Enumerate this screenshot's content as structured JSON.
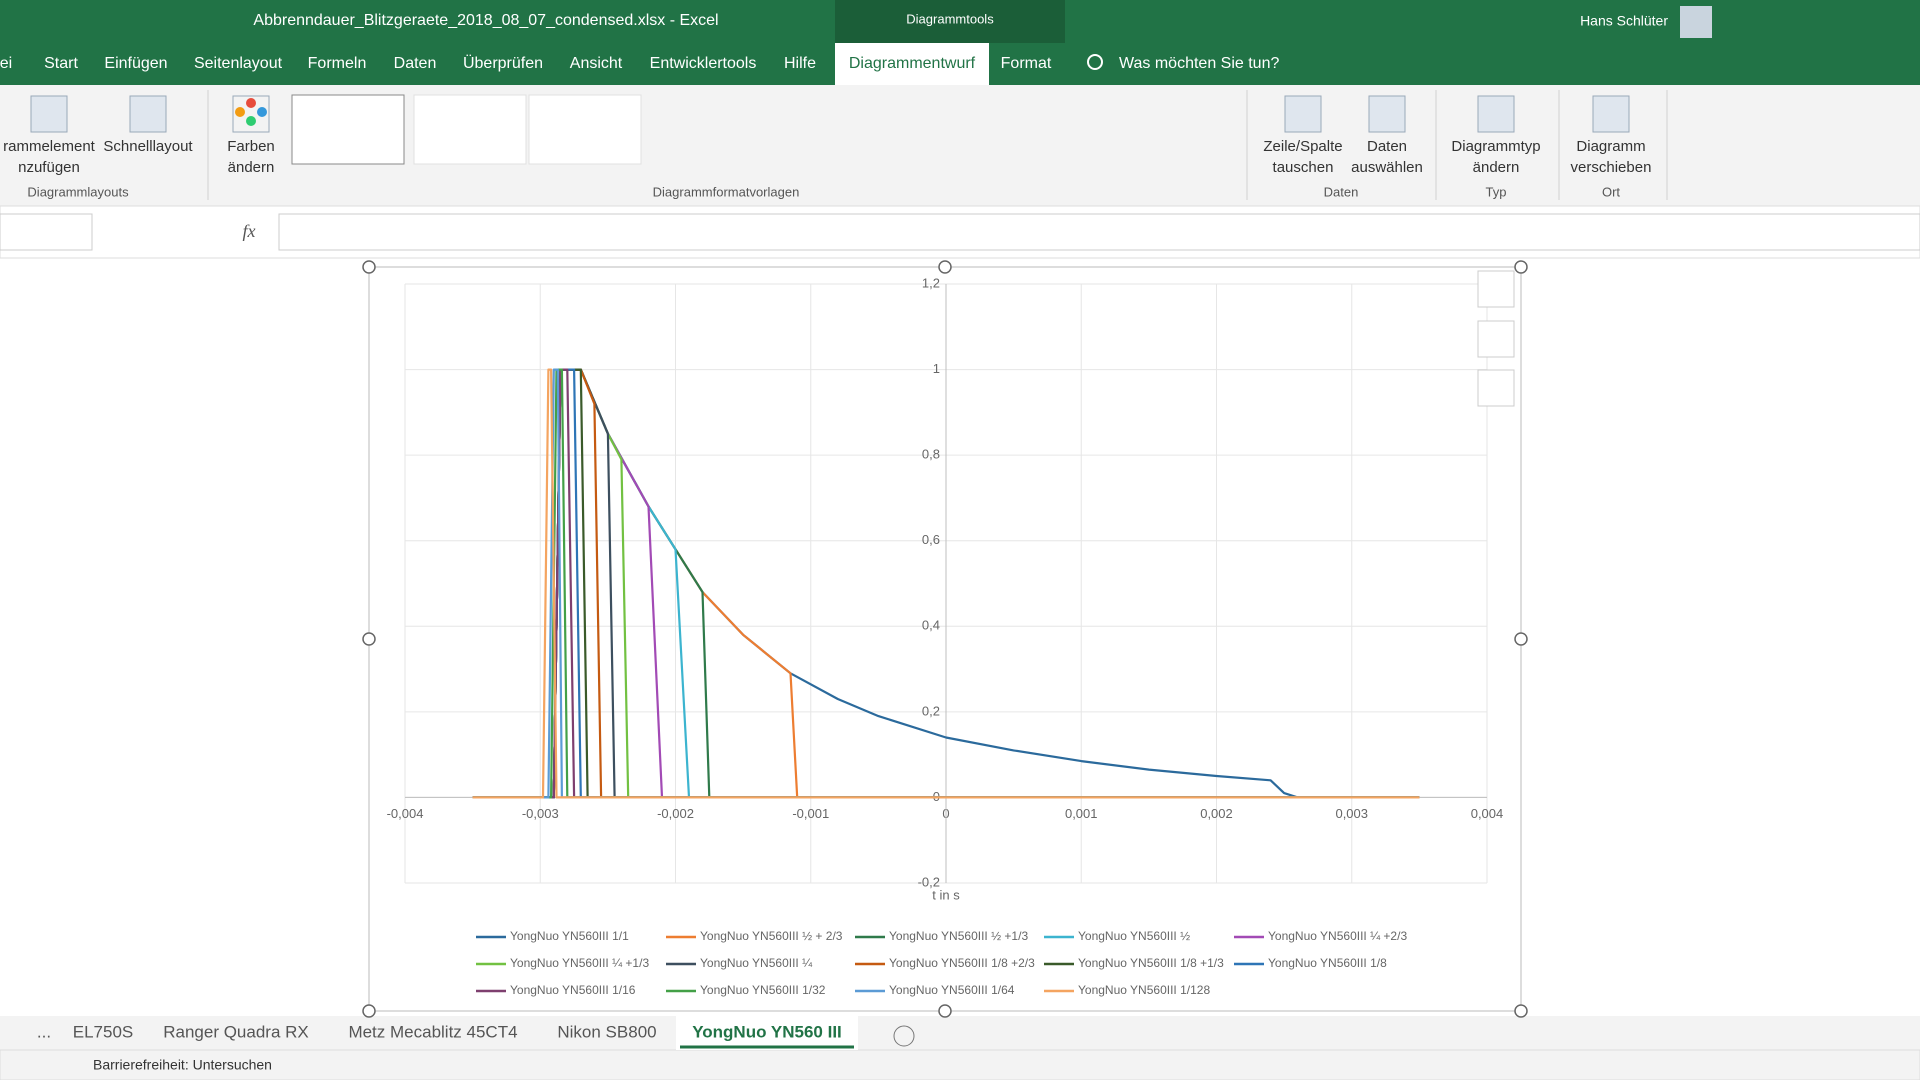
{
  "window": {
    "title": "Abbrenndauer_Blitzgeraete_2018_08_07_condensed.xlsx  -  Excel",
    "context_tab": "Diagrammtools",
    "user": "Hans Schlüter"
  },
  "ribbon_tabs": [
    "ei",
    "Start",
    "Einfügen",
    "Seitenlayout",
    "Formeln",
    "Daten",
    "Überprüfen",
    "Ansicht",
    "Entwicklertools",
    "Hilfe",
    "Diagrammentwurf",
    "Format"
  ],
  "tell_me": "Was möchten Sie tun?",
  "ribbon_buttons": [
    {
      "lines": [
        "rammelement",
        "nzufügen"
      ]
    },
    {
      "lines": [
        "Schnelllayout"
      ]
    },
    {
      "lines": [
        "Farben",
        "ändern"
      ]
    },
    {
      "lines": [
        "Zeile/Spalte",
        "tauschen"
      ]
    },
    {
      "lines": [
        "Daten",
        "auswählen"
      ]
    },
    {
      "lines": [
        "Diagrammtyp",
        "ändern"
      ]
    },
    {
      "lines": [
        "Diagramm",
        "verschieben"
      ]
    }
  ],
  "ribbon_groups": [
    "Diagrammlayouts",
    "Diagrammformatvorlagen",
    "Daten",
    "Typ",
    "Ort"
  ],
  "formula_bar": {
    "fx": "fx"
  },
  "sheet_tabs": [
    "...",
    "EL750S",
    "Ranger Quadra RX",
    "Metz Mecablitz 45CT4",
    "Nikon SB800",
    "YongNuo YN560 III"
  ],
  "status": "Barrierefreiheit: Untersuchen",
  "chart_data": {
    "type": "line",
    "x_label": "t in s",
    "grid": true,
    "legend": "bottom",
    "xlim": [
      -0.004,
      0.004
    ],
    "xticks": [
      {
        "value": -0.004,
        "label": "-0,004"
      },
      {
        "value": -0.003,
        "label": "-0,003"
      },
      {
        "value": -0.002,
        "label": "-0,002"
      },
      {
        "value": -0.001,
        "label": "-0,001"
      },
      0,
      {
        "value": 0.001,
        "label": "0,001"
      },
      {
        "value": 0.002,
        "label": "0,002"
      },
      {
        "value": 0.003,
        "label": "0,003"
      },
      {
        "value": 0.004,
        "label": "0,004"
      }
    ],
    "ylim": [
      -0.2,
      1.2
    ],
    "yticks": [
      {
        "value": -0.2,
        "label": "-0,2"
      },
      0,
      {
        "value": 0.2,
        "label": "0,2"
      },
      {
        "value": 0.4,
        "label": "0,4"
      },
      {
        "value": 0.6,
        "label": "0,6"
      },
      {
        "value": 0.8,
        "label": "0,8"
      },
      1,
      {
        "value": 1.2,
        "label": "1,2"
      }
    ],
    "series": [
      {
        "name": "YongNuo YN560III 1/1",
        "color": "#2b6a9c",
        "x": [
          -0.0035,
          -0.0029,
          -0.00285,
          -0.0027,
          -0.0025,
          -0.0022,
          -0.002,
          -0.0018,
          -0.0015,
          -0.00115,
          -0.0008,
          -0.0005,
          0,
          0.0005,
          0.001,
          0.0015,
          0.002,
          0.0024,
          0.0025,
          0.0026,
          0.0035
        ],
        "values": [
          0,
          0,
          1,
          1,
          0.85,
          0.68,
          0.58,
          0.48,
          0.38,
          0.29,
          0.23,
          0.19,
          0.14,
          0.11,
          0.085,
          0.065,
          0.05,
          0.04,
          0.01,
          0,
          0
        ]
      },
      {
        "name": "YongNuo YN560III ½ + 2/3",
        "color": "#ed7d31",
        "x": [
          -0.0035,
          -0.0029,
          -0.00285,
          -0.0027,
          -0.0025,
          -0.0022,
          -0.002,
          -0.0018,
          -0.0015,
          -0.00115,
          -0.0011,
          0.0035
        ],
        "values": [
          0,
          0,
          1,
          1,
          0.85,
          0.68,
          0.58,
          0.48,
          0.38,
          0.29,
          0,
          0
        ]
      },
      {
        "name": "YongNuo YN560III ½ +1/3",
        "color": "#2f7a4a",
        "x": [
          -0.0035,
          -0.0029,
          -0.00285,
          -0.0027,
          -0.0025,
          -0.0022,
          -0.002,
          -0.0018,
          -0.00175,
          0.0035
        ],
        "values": [
          0,
          0,
          1,
          1,
          0.85,
          0.68,
          0.58,
          0.48,
          0,
          0
        ]
      },
      {
        "name": "YongNuo YN560III ½",
        "color": "#3cb4cf",
        "x": [
          -0.0035,
          -0.0029,
          -0.00285,
          -0.0027,
          -0.0025,
          -0.0022,
          -0.002,
          -0.0019,
          0.0035
        ],
        "values": [
          0,
          0,
          1,
          1,
          0.85,
          0.68,
          0.58,
          0,
          0
        ]
      },
      {
        "name": "YongNuo YN560III ¼ +2/3",
        "color": "#a24ab5",
        "x": [
          -0.0035,
          -0.0029,
          -0.00285,
          -0.0027,
          -0.0025,
          -0.0022,
          -0.0021,
          0.0035
        ],
        "values": [
          0,
          0,
          1,
          1,
          0.85,
          0.68,
          0,
          0
        ]
      },
      {
        "name": "YongNuo YN560III ¼ +1/3",
        "color": "#72c142",
        "x": [
          -0.0035,
          -0.0029,
          -0.00285,
          -0.0027,
          -0.0025,
          -0.0024,
          -0.00235,
          0.0035
        ],
        "values": [
          0,
          0,
          1,
          1,
          0.85,
          0.79,
          0,
          0
        ]
      },
      {
        "name": "YongNuo YN560III ¼",
        "color": "#3d4f5f",
        "x": [
          -0.0035,
          -0.0029,
          -0.00285,
          -0.0027,
          -0.0025,
          -0.00245,
          0.0035
        ],
        "values": [
          0,
          0,
          1,
          1,
          0.85,
          0,
          0
        ]
      },
      {
        "name": "YongNuo YN560III 1/8 +2/3",
        "color": "#c55a11",
        "x": [
          -0.0035,
          -0.0029,
          -0.00285,
          -0.0027,
          -0.0026,
          -0.00255,
          0.0035
        ],
        "values": [
          0,
          0,
          1,
          1,
          0.92,
          0,
          0
        ]
      },
      {
        "name": "YongNuo YN560III 1/8 +1/3",
        "color": "#3a5a2a",
        "x": [
          -0.0035,
          -0.0029,
          -0.00285,
          -0.0027,
          -0.00265,
          0.0035
        ],
        "values": [
          0,
          0,
          1,
          1,
          0,
          0
        ]
      },
      {
        "name": "YongNuo YN560III 1/8",
        "color": "#2e75b6",
        "x": [
          -0.0035,
          -0.0029,
          -0.00285,
          -0.00275,
          -0.0027,
          0.0035
        ],
        "values": [
          0,
          0,
          1,
          1,
          0,
          0
        ]
      },
      {
        "name": "YongNuo YN560III 1/16",
        "color": "#7e3f6f",
        "x": [
          -0.0035,
          -0.0029,
          -0.00285,
          -0.0028,
          -0.00275,
          0.0035
        ],
        "values": [
          0,
          0,
          1,
          1,
          0,
          0
        ]
      },
      {
        "name": "YongNuo YN560III 1/32",
        "color": "#43a047",
        "x": [
          -0.0035,
          -0.00292,
          -0.00288,
          -0.00284,
          -0.0028,
          0.0035
        ],
        "values": [
          0,
          0,
          1,
          1,
          0,
          0
        ]
      },
      {
        "name": "YongNuo YN560III 1/64",
        "color": "#5b9bd5",
        "x": [
          -0.0035,
          -0.00294,
          -0.0029,
          -0.00287,
          -0.00284,
          0.0035
        ],
        "values": [
          0,
          0,
          1,
          1,
          0,
          0
        ]
      },
      {
        "name": "YongNuo YN560III 1/128",
        "color": "#f4a460",
        "x": [
          -0.0035,
          -0.00298,
          -0.00294,
          -0.00292,
          -0.00288,
          0.0035
        ],
        "values": [
          0,
          0,
          1,
          1,
          0,
          0
        ]
      }
    ]
  }
}
